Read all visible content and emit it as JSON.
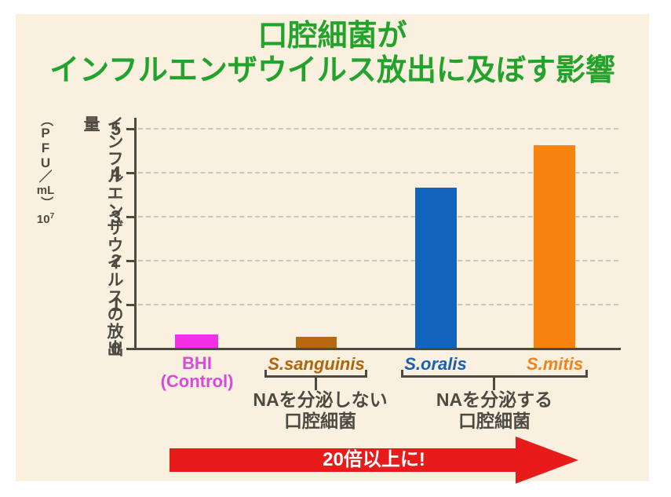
{
  "colors": {
    "page_bg": "#ffffff",
    "panel_bg": "#faf0df",
    "axis": "#4d4943",
    "grid": "#c9c6bf",
    "title_green": "#22a32c",
    "arrow_red": "#e81b1b",
    "arrow_text": "#ffffff"
  },
  "title": {
    "line1": "口腔細菌が",
    "line2": "インフルエンザウイルス放出に及ぼす影響"
  },
  "y_axis": {
    "title": "インフルエンザウイルスの放出量",
    "unit": {
      "open": "（",
      "l1": "P",
      "l2": "F",
      "l3": "U",
      "slash": "／",
      "ml": "mL",
      "close": "）",
      "power_base": "10",
      "power_exp": "7"
    }
  },
  "chart_data": {
    "type": "bar",
    "title": "口腔細菌がインフルエンザウイルス放出に及ぼす影響",
    "ylabel": "インフルエンザウイルスの放出量（PFU/mL）×10⁷",
    "xlabel": "",
    "ylim": [
      0,
      5
    ],
    "yticks": [
      0,
      1,
      2,
      3,
      4,
      5
    ],
    "grid": "horizontal dashed",
    "legend": "none",
    "categories": [
      "BHI (Control)",
      "S.sanguinis",
      "S.oralis",
      "S.mitis"
    ],
    "values": [
      0.3,
      0.25,
      3.65,
      4.6
    ],
    "bar_colors": [
      "#f230e6",
      "#b8690f",
      "#1264bd",
      "#f8830f"
    ],
    "category_label_colors": [
      "#d84ad8",
      "#ad660e",
      "#1a5fb3",
      "#ef831d"
    ],
    "group_annotations": [
      {
        "label": "NAを分泌しない口腔細菌",
        "categories": [
          "S.sanguinis"
        ]
      },
      {
        "label": "NAを分泌する口腔細菌",
        "categories": [
          "S.oralis",
          "S.mitis"
        ]
      }
    ],
    "arrow_annotation": "20倍以上に!"
  },
  "labels": {
    "bar0_line1": "BHI",
    "bar0_line2": "(Control)",
    "group1_line1": "NAを分泌しない",
    "group1_line2": "口腔細菌",
    "group2_line1": "NAを分泌する",
    "group2_line2": "口腔細菌"
  }
}
